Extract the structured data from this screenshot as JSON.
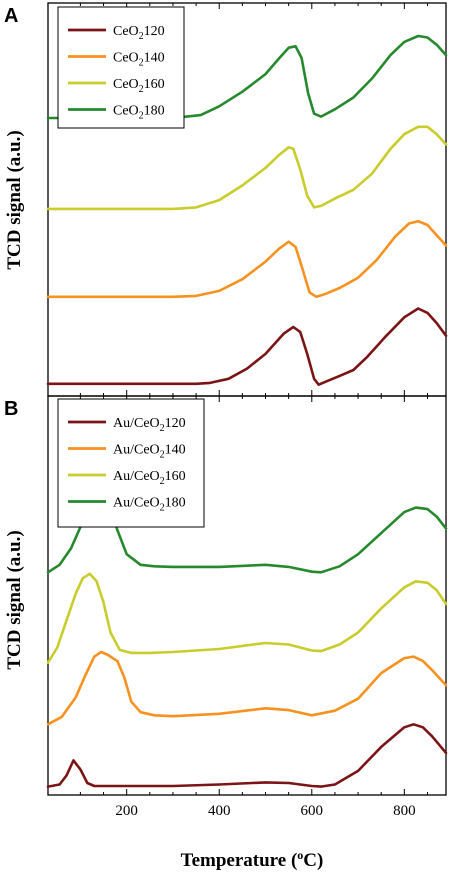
{
  "chart_data": [
    {
      "panel": "A",
      "type": "line",
      "ylabel": "TCD signal (a.u.)",
      "xlim": [
        30,
        890
      ],
      "legend_position": "top-left",
      "series": [
        {
          "name": "CeO2120",
          "name_main": "CeO",
          "name_sub": "2",
          "name_rest": "120",
          "color": "#7b1416",
          "x": [
            30,
            350,
            380,
            420,
            460,
            500,
            540,
            560,
            575,
            590,
            605,
            615,
            630,
            660,
            690,
            720,
            760,
            800,
            830,
            850,
            870,
            890
          ],
          "y": [
            0.028,
            0.028,
            0.031,
            0.045,
            0.08,
            0.13,
            0.2,
            0.222,
            0.205,
            0.13,
            0.045,
            0.025,
            0.035,
            0.055,
            0.075,
            0.12,
            0.19,
            0.255,
            0.285,
            0.27,
            0.235,
            0.192
          ]
        },
        {
          "name": "CeO2140",
          "name_main": "CeO",
          "name_sub": "2",
          "name_rest": "140",
          "color": "#f7911f",
          "x": [
            30,
            300,
            350,
            400,
            450,
            500,
            530,
            550,
            565,
            580,
            595,
            610,
            630,
            660,
            700,
            740,
            780,
            810,
            830,
            850,
            870,
            890
          ],
          "y": [
            0.325,
            0.325,
            0.328,
            0.345,
            0.385,
            0.445,
            0.49,
            0.513,
            0.495,
            0.42,
            0.34,
            0.325,
            0.335,
            0.355,
            0.39,
            0.45,
            0.53,
            0.575,
            0.583,
            0.57,
            0.535,
            0.5
          ]
        },
        {
          "name": "CeO2160",
          "name_main": "CeO",
          "name_sub": "2",
          "name_rest": "160",
          "color": "#c8cc2c",
          "x": [
            30,
            300,
            350,
            400,
            450,
            500,
            530,
            550,
            560,
            575,
            590,
            605,
            620,
            650,
            690,
            730,
            770,
            800,
            830,
            850,
            870,
            890
          ],
          "y": [
            0.625,
            0.625,
            0.63,
            0.655,
            0.705,
            0.765,
            0.81,
            0.835,
            0.83,
            0.76,
            0.67,
            0.63,
            0.635,
            0.66,
            0.69,
            0.745,
            0.83,
            0.88,
            0.905,
            0.905,
            0.88,
            0.845
          ]
        },
        {
          "name": "CeO2180",
          "name_main": "CeO",
          "name_sub": "2",
          "name_rest": "180",
          "color": "#26892e",
          "x": [
            30,
            300,
            360,
            400,
            450,
            500,
            530,
            550,
            565,
            578,
            592,
            605,
            620,
            650,
            690,
            730,
            770,
            800,
            830,
            850,
            870,
            890
          ],
          "y": [
            0.935,
            0.935,
            0.945,
            0.975,
            1.025,
            1.085,
            1.14,
            1.175,
            1.18,
            1.14,
            1.02,
            0.95,
            0.94,
            0.965,
            1.005,
            1.07,
            1.15,
            1.195,
            1.215,
            1.21,
            1.185,
            1.15
          ]
        }
      ]
    },
    {
      "panel": "B",
      "type": "line",
      "ylabel": "TCD signal (a.u.)",
      "xlabel_main": "Temperature (",
      "xlabel_sup": "o",
      "xlabel_rest": "C)",
      "xlim": [
        30,
        890
      ],
      "xticks": [
        200,
        400,
        600,
        800
      ],
      "legend_position": "top-left",
      "series": [
        {
          "name": "Au/CeO2120",
          "name_main": "Au/CeO",
          "name_sub": "2",
          "name_rest": "120",
          "color": "#7b1416",
          "x": [
            30,
            55,
            70,
            85,
            100,
            115,
            130,
            150,
            200,
            300,
            400,
            500,
            550,
            600,
            620,
            650,
            700,
            750,
            800,
            820,
            840,
            860,
            890
          ],
          "y": [
            0.008,
            0.015,
            0.045,
            0.095,
            0.065,
            0.02,
            0.01,
            0.01,
            0.01,
            0.01,
            0.015,
            0.022,
            0.02,
            0.01,
            0.008,
            0.015,
            0.06,
            0.14,
            0.205,
            0.215,
            0.205,
            0.175,
            0.12
          ]
        },
        {
          "name": "Au/CeO2140",
          "name_main": "Au/CeO",
          "name_sub": "2",
          "name_rest": "140",
          "color": "#f7911f",
          "x": [
            30,
            60,
            90,
            110,
            130,
            145,
            160,
            180,
            195,
            210,
            230,
            260,
            300,
            400,
            500,
            550,
            600,
            650,
            700,
            750,
            800,
            820,
            840,
            860,
            890
          ],
          "y": [
            0.215,
            0.24,
            0.305,
            0.375,
            0.44,
            0.455,
            0.445,
            0.425,
            0.37,
            0.29,
            0.255,
            0.245,
            0.242,
            0.25,
            0.268,
            0.262,
            0.245,
            0.26,
            0.3,
            0.385,
            0.435,
            0.44,
            0.425,
            0.395,
            0.345
          ]
        },
        {
          "name": "Au/CeO2160",
          "name_main": "Au/CeO",
          "name_sub": "2",
          "name_rest": "160",
          "color": "#c8cc2c",
          "x": [
            30,
            50,
            70,
            90,
            105,
            120,
            135,
            150,
            165,
            185,
            210,
            250,
            300,
            400,
            500,
            550,
            600,
            620,
            660,
            700,
            750,
            800,
            825,
            850,
            870,
            890
          ],
          "y": [
            0.42,
            0.47,
            0.56,
            0.65,
            0.7,
            0.715,
            0.69,
            0.62,
            0.52,
            0.462,
            0.452,
            0.452,
            0.455,
            0.465,
            0.485,
            0.48,
            0.46,
            0.458,
            0.48,
            0.52,
            0.6,
            0.67,
            0.69,
            0.685,
            0.66,
            0.615
          ]
        },
        {
          "name": "Au/CeO2180",
          "name_main": "Au/CeO",
          "name_sub": "2",
          "name_rest": "180",
          "color": "#26892e",
          "x": [
            30,
            55,
            80,
            100,
            120,
            135,
            150,
            165,
            180,
            200,
            230,
            260,
            300,
            400,
            500,
            550,
            600,
            620,
            660,
            700,
            750,
            800,
            825,
            850,
            870,
            890
          ],
          "y": [
            0.72,
            0.745,
            0.8,
            0.87,
            0.93,
            0.965,
            0.965,
            0.93,
            0.86,
            0.78,
            0.745,
            0.74,
            0.738,
            0.738,
            0.745,
            0.738,
            0.722,
            0.72,
            0.74,
            0.78,
            0.85,
            0.92,
            0.935,
            0.93,
            0.905,
            0.865
          ]
        }
      ]
    }
  ]
}
